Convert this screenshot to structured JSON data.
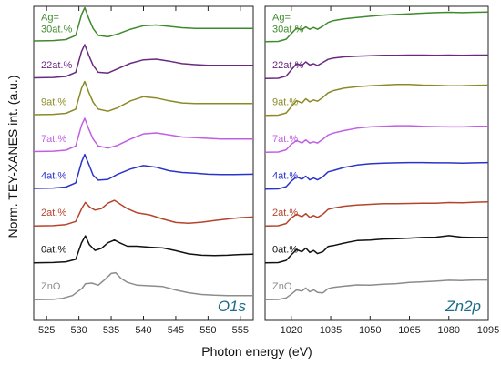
{
  "figure": {
    "ylabel": "Norm. TEY-XANES int. (a.u.)",
    "xlabel": "Photon energy (eV)"
  },
  "chart_data": [
    {
      "type": "line",
      "panel_title": "O1s",
      "xlim": [
        523,
        557
      ],
      "xticks": [
        525,
        530,
        535,
        540,
        545,
        550,
        555
      ],
      "series": [
        {
          "name": "ZnO",
          "color": "#8c8c8c",
          "x": [
            523,
            526,
            527.5,
            529,
            530.5,
            531,
            532,
            533,
            534,
            535,
            535.7,
            536.5,
            537.5,
            539,
            541,
            543,
            545,
            547,
            549,
            551,
            553,
            555,
            557
          ],
          "y": [
            0.02,
            0.03,
            0.06,
            0.14,
            0.35,
            0.48,
            0.5,
            0.44,
            0.6,
            0.78,
            0.8,
            0.64,
            0.52,
            0.44,
            0.42,
            0.4,
            0.3,
            0.22,
            0.17,
            0.15,
            0.14,
            0.14,
            0.14
          ]
        },
        {
          "name": "0at.%",
          "color": "#111111",
          "x": [
            523,
            526,
            528,
            529.5,
            530.4,
            531,
            531.6,
            532.5,
            533.5,
            534.5,
            535.5,
            536.3,
            537.5,
            539,
            541,
            543,
            545,
            547,
            549,
            551,
            553,
            555,
            557
          ],
          "y": [
            0.02,
            0.03,
            0.05,
            0.12,
            0.6,
            0.8,
            0.55,
            0.38,
            0.44,
            0.6,
            0.68,
            0.6,
            0.5,
            0.5,
            0.47,
            0.45,
            0.37,
            0.28,
            0.24,
            0.23,
            0.24,
            0.26,
            0.27
          ]
        },
        {
          "name": "2at.%",
          "color": "#b5442c",
          "x": [
            523,
            526,
            528,
            529.5,
            530.5,
            531,
            531.7,
            532.5,
            533.5,
            534.5,
            535.5,
            536.5,
            537.5,
            539,
            541,
            543,
            545,
            547,
            549,
            551,
            553,
            555,
            557
          ],
          "y": [
            0.02,
            0.03,
            0.06,
            0.15,
            0.55,
            0.7,
            0.56,
            0.48,
            0.52,
            0.68,
            0.76,
            0.64,
            0.52,
            0.4,
            0.34,
            0.22,
            0.12,
            0.1,
            0.13,
            0.18,
            0.22,
            0.26,
            0.28
          ]
        },
        {
          "name": "4at.%",
          "color": "#2b34c9",
          "x": [
            523,
            526,
            528,
            529.5,
            530.4,
            530.9,
            531.5,
            532.2,
            533,
            534.5,
            536,
            538,
            540,
            542,
            544,
            546,
            548,
            550,
            552,
            554,
            557
          ],
          "y": [
            0.04,
            0.05,
            0.08,
            0.2,
            0.8,
            1.02,
            0.75,
            0.42,
            0.28,
            0.3,
            0.45,
            0.6,
            0.7,
            0.65,
            0.55,
            0.5,
            0.48,
            0.45,
            0.44,
            0.44,
            0.45
          ]
        },
        {
          "name": "7at.%",
          "color": "#c05fe3",
          "x": [
            523,
            526,
            528,
            529.5,
            530.4,
            530.9,
            531.5,
            532.2,
            533,
            534.5,
            536,
            538,
            540,
            542,
            544,
            546,
            548,
            550,
            552,
            554,
            557
          ],
          "y": [
            0.04,
            0.05,
            0.08,
            0.2,
            0.8,
            1.0,
            0.7,
            0.4,
            0.2,
            0.14,
            0.22,
            0.4,
            0.55,
            0.58,
            0.52,
            0.46,
            0.44,
            0.42,
            0.4,
            0.4,
            0.4
          ]
        },
        {
          "name": "9at.%",
          "color": "#8c8a26",
          "x": [
            523,
            526,
            528,
            529.5,
            530.4,
            530.9,
            531.5,
            532.2,
            533,
            534.5,
            536,
            538,
            540,
            542,
            544,
            546,
            548,
            550,
            552,
            554,
            557
          ],
          "y": [
            0.04,
            0.05,
            0.08,
            0.2,
            0.8,
            1.0,
            0.7,
            0.4,
            0.2,
            0.14,
            0.24,
            0.44,
            0.56,
            0.52,
            0.44,
            0.38,
            0.36,
            0.36,
            0.36,
            0.36,
            0.36
          ]
        },
        {
          "name": "22at.%",
          "color": "#6a2a7f",
          "x": [
            523,
            526,
            528,
            529.5,
            530.4,
            530.9,
            531.5,
            532.2,
            533,
            534.5,
            536,
            538,
            540,
            542,
            544,
            546,
            548,
            550,
            552,
            554,
            557
          ],
          "y": [
            0.04,
            0.05,
            0.08,
            0.2,
            0.8,
            1.0,
            0.7,
            0.4,
            0.2,
            0.18,
            0.3,
            0.46,
            0.56,
            0.58,
            0.52,
            0.45,
            0.42,
            0.4,
            0.4,
            0.4,
            0.4
          ]
        },
        {
          "name": "Ag=\n30at.%",
          "color": "#3f8a2c",
          "x": [
            523,
            526,
            528,
            529.5,
            530.4,
            530.9,
            531.5,
            532.2,
            533,
            534.5,
            536,
            538,
            540,
            542,
            544,
            546,
            548,
            550,
            552,
            554,
            557
          ],
          "y": [
            0.04,
            0.05,
            0.08,
            0.2,
            0.8,
            1.0,
            0.7,
            0.4,
            0.2,
            0.16,
            0.24,
            0.38,
            0.48,
            0.5,
            0.46,
            0.42,
            0.4,
            0.4,
            0.4,
            0.4,
            0.4
          ]
        }
      ]
    },
    {
      "type": "line",
      "panel_title": "Zn2p",
      "xlim": [
        1010,
        1095
      ],
      "xticks": [
        1020,
        1035,
        1050,
        1065,
        1080,
        1095
      ],
      "series": [
        {
          "name": "ZnO",
          "color": "#8c8c8c",
          "x": [
            1010,
            1015,
            1018,
            1020,
            1022,
            1024,
            1025.5,
            1027,
            1028.5,
            1030,
            1032,
            1034,
            1036,
            1040,
            1045,
            1050,
            1055,
            1060,
            1065,
            1070,
            1075,
            1080,
            1085,
            1090,
            1095
          ],
          "y": [
            0.02,
            0.03,
            0.08,
            0.2,
            0.34,
            0.3,
            0.4,
            0.28,
            0.34,
            0.26,
            0.24,
            0.38,
            0.42,
            0.46,
            0.5,
            0.49,
            0.52,
            0.54,
            0.58,
            0.6,
            0.62,
            0.65,
            0.64,
            0.66,
            0.66
          ]
        },
        {
          "name": "0at.%",
          "color": "#111111",
          "x": [
            1010,
            1015,
            1018,
            1020,
            1022,
            1024,
            1025.5,
            1027,
            1028.5,
            1030,
            1032,
            1034,
            1036,
            1040,
            1045,
            1050,
            1055,
            1060,
            1065,
            1070,
            1075,
            1080,
            1085,
            1090,
            1095
          ],
          "y": [
            0.02,
            0.03,
            0.1,
            0.28,
            0.45,
            0.38,
            0.5,
            0.36,
            0.42,
            0.32,
            0.38,
            0.55,
            0.58,
            0.66,
            0.74,
            0.76,
            0.79,
            0.8,
            0.82,
            0.84,
            0.85,
            0.9,
            0.85,
            0.84,
            0.84
          ]
        },
        {
          "name": "2at.%",
          "color": "#b5442c",
          "x": [
            1010,
            1015,
            1018,
            1020,
            1022,
            1024,
            1025.5,
            1027,
            1028.5,
            1030,
            1032,
            1034,
            1036,
            1040,
            1045,
            1050,
            1055,
            1060,
            1065,
            1070,
            1075,
            1080,
            1085,
            1090,
            1095
          ],
          "y": [
            0.02,
            0.03,
            0.1,
            0.28,
            0.4,
            0.32,
            0.42,
            0.3,
            0.36,
            0.3,
            0.4,
            0.56,
            0.6,
            0.66,
            0.7,
            0.72,
            0.74,
            0.74,
            0.75,
            0.76,
            0.76,
            0.78,
            0.77,
            0.79,
            0.8
          ]
        },
        {
          "name": "4at.%",
          "color": "#2b34c9",
          "x": [
            1010,
            1015,
            1018,
            1020,
            1022,
            1024,
            1025.5,
            1027,
            1028.5,
            1030,
            1032,
            1034,
            1036,
            1040,
            1045,
            1050,
            1055,
            1060,
            1065,
            1070,
            1075,
            1080,
            1085,
            1090,
            1095
          ],
          "y": [
            0.02,
            0.03,
            0.1,
            0.28,
            0.42,
            0.34,
            0.44,
            0.32,
            0.38,
            0.32,
            0.42,
            0.58,
            0.62,
            0.72,
            0.8,
            0.84,
            0.86,
            0.87,
            0.88,
            0.88,
            0.87,
            0.87,
            0.86,
            0.87,
            0.88
          ]
        },
        {
          "name": "7at.%",
          "color": "#c05fe3",
          "x": [
            1010,
            1015,
            1018,
            1020,
            1022,
            1024,
            1025.5,
            1027,
            1028.5,
            1030,
            1032,
            1034,
            1036,
            1040,
            1045,
            1050,
            1055,
            1060,
            1065,
            1070,
            1075,
            1080,
            1085,
            1090,
            1095
          ],
          "y": [
            0.02,
            0.03,
            0.1,
            0.28,
            0.4,
            0.32,
            0.42,
            0.32,
            0.36,
            0.32,
            0.44,
            0.58,
            0.64,
            0.72,
            0.8,
            0.84,
            0.86,
            0.88,
            0.88,
            0.86,
            0.85,
            0.84,
            0.84,
            0.86,
            0.86
          ]
        },
        {
          "name": "9at.%",
          "color": "#8c8a26",
          "x": [
            1010,
            1015,
            1018,
            1020,
            1022,
            1024,
            1025.5,
            1027,
            1028.5,
            1030,
            1032,
            1034,
            1036,
            1040,
            1045,
            1050,
            1055,
            1060,
            1065,
            1070,
            1075,
            1080,
            1085,
            1090,
            1095
          ],
          "y": [
            0.02,
            0.03,
            0.1,
            0.3,
            0.5,
            0.42,
            0.56,
            0.46,
            0.52,
            0.48,
            0.6,
            0.75,
            0.82,
            0.9,
            0.95,
            0.98,
            1.0,
            1.02,
            1.02,
            1.0,
            0.99,
            0.98,
            0.98,
            0.99,
            1.0
          ]
        },
        {
          "name": "22at.%",
          "color": "#6a2a7f",
          "x": [
            1010,
            1015,
            1018,
            1020,
            1022,
            1024,
            1025.5,
            1027,
            1028.5,
            1030,
            1032,
            1034,
            1036,
            1040,
            1045,
            1050,
            1055,
            1060,
            1065,
            1070,
            1075,
            1080,
            1085,
            1090,
            1095
          ],
          "y": [
            0.02,
            0.03,
            0.1,
            0.3,
            0.5,
            0.44,
            0.56,
            0.46,
            0.5,
            0.44,
            0.54,
            0.64,
            0.68,
            0.72,
            0.74,
            0.76,
            0.77,
            0.77,
            0.78,
            0.78,
            0.77,
            0.78,
            0.77,
            0.78,
            0.78
          ]
        },
        {
          "name": "Ag=\n30at.%",
          "color": "#3f8a2c",
          "x": [
            1010,
            1015,
            1018,
            1020,
            1022,
            1024,
            1025.5,
            1027,
            1028.5,
            1030,
            1032,
            1034,
            1036,
            1040,
            1045,
            1050,
            1055,
            1060,
            1065,
            1070,
            1075,
            1080,
            1085,
            1090,
            1095
          ],
          "y": [
            0.02,
            0.03,
            0.1,
            0.28,
            0.46,
            0.4,
            0.5,
            0.42,
            0.48,
            0.42,
            0.52,
            0.64,
            0.7,
            0.76,
            0.8,
            0.84,
            0.88,
            0.9,
            0.92,
            0.94,
            0.96,
            0.97,
            0.96,
            0.97,
            0.98
          ]
        }
      ]
    }
  ]
}
